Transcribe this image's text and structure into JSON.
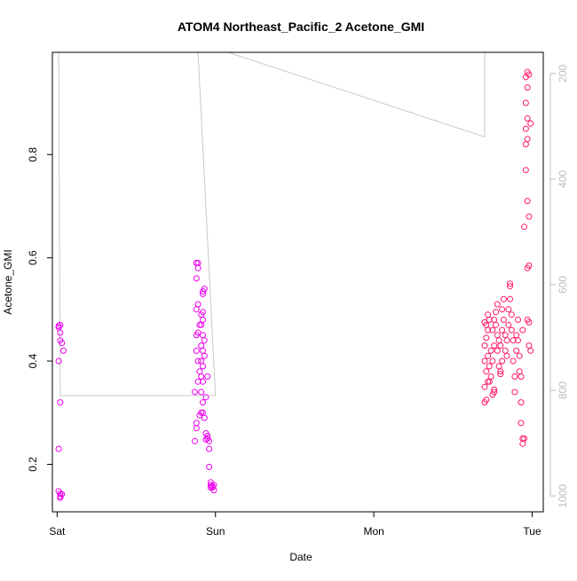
{
  "chart_data": {
    "type": "scatter",
    "title": "ATOM4 Northeast_Pacific_2 Acetone_GMI",
    "xlabel": "Date",
    "ylabel": "Acetone_GMI",
    "x_unit": "days since Sat 00:00",
    "xlim": [
      -0.03,
      3.07
    ],
    "ylim": [
      0.108,
      0.998
    ],
    "x_ticks": [
      {
        "value": 0,
        "label": "Sat"
      },
      {
        "value": 1,
        "label": "Sun"
      },
      {
        "value": 2,
        "label": "Mon"
      },
      {
        "value": 3,
        "label": "Tue"
      }
    ],
    "y_ticks": [
      0.2,
      0.4,
      0.6,
      0.8
    ],
    "right_axis": {
      "label": "",
      "range": [
        1030,
        160
      ],
      "ticks": [
        200,
        400,
        600,
        800,
        1000
      ],
      "color": "#bdbdbd"
    },
    "grid": false,
    "legend": "none",
    "colors": {
      "points_low": "#ee00ee",
      "points_high": "#ff1a66",
      "pressure_line": "#c8c8c8"
    },
    "pressure_line": [
      [
        0.01,
        160
      ],
      [
        0.02,
        810
      ],
      [
        1.0,
        810
      ],
      [
        0.89,
        160
      ],
      [
        0.91,
        160
      ],
      [
        0.93,
        160
      ],
      [
        0.95,
        160
      ],
      [
        0.97,
        160
      ],
      [
        1.08,
        160
      ],
      [
        2.7,
        320
      ],
      [
        2.7,
        160
      ],
      [
        2.72,
        160
      ],
      [
        2.74,
        160
      ],
      [
        2.76,
        160
      ],
      [
        2.78,
        160
      ],
      [
        2.8,
        160
      ],
      [
        2.82,
        160
      ],
      [
        2.84,
        160
      ],
      [
        2.86,
        160
      ],
      [
        2.88,
        160
      ],
      [
        2.9,
        160
      ],
      [
        2.92,
        160
      ],
      [
        2.94,
        160
      ],
      [
        2.96,
        160
      ],
      [
        2.98,
        160
      ],
      [
        3.0,
        160
      ]
    ],
    "series": [
      {
        "values": [
          [
            0.02,
            0.143
          ],
          [
            0.02,
            0.138
          ],
          [
            0.01,
            0.148
          ],
          [
            0.02,
            0.135
          ],
          [
            0.03,
            0.142
          ],
          [
            0.01,
            0.23
          ],
          [
            0.02,
            0.32
          ],
          [
            0.01,
            0.4
          ],
          [
            0.04,
            0.42
          ],
          [
            0.02,
            0.44
          ],
          [
            0.03,
            0.435
          ],
          [
            0.02,
            0.455
          ],
          [
            0.01,
            0.465
          ],
          [
            0.02,
            0.47
          ],
          [
            0.01,
            0.468
          ],
          [
            0.87,
            0.245
          ],
          [
            0.88,
            0.27
          ],
          [
            0.88,
            0.28
          ],
          [
            0.87,
            0.34
          ],
          [
            0.89,
            0.36
          ],
          [
            0.89,
            0.4
          ],
          [
            0.9,
            0.38
          ],
          [
            0.88,
            0.42
          ],
          [
            0.88,
            0.45
          ],
          [
            0.89,
            0.455
          ],
          [
            0.9,
            0.47
          ],
          [
            0.88,
            0.5
          ],
          [
            0.89,
            0.51
          ],
          [
            0.88,
            0.56
          ],
          [
            0.89,
            0.58
          ],
          [
            0.88,
            0.59
          ],
          [
            0.89,
            0.59
          ],
          [
            0.92,
            0.53
          ],
          [
            0.93,
            0.54
          ],
          [
            0.92,
            0.535
          ],
          [
            0.91,
            0.49
          ],
          [
            0.92,
            0.495
          ],
          [
            0.92,
            0.48
          ],
          [
            0.91,
            0.47
          ],
          [
            0.92,
            0.45
          ],
          [
            0.93,
            0.44
          ],
          [
            0.91,
            0.43
          ],
          [
            0.92,
            0.42
          ],
          [
            0.93,
            0.41
          ],
          [
            0.91,
            0.4
          ],
          [
            0.92,
            0.39
          ],
          [
            0.91,
            0.37
          ],
          [
            0.92,
            0.36
          ],
          [
            0.91,
            0.34
          ],
          [
            0.92,
            0.32
          ],
          [
            0.91,
            0.3
          ],
          [
            0.9,
            0.295
          ],
          [
            0.92,
            0.3
          ],
          [
            0.93,
            0.29
          ],
          [
            0.94,
            0.33
          ],
          [
            0.95,
            0.37
          ],
          [
            0.94,
            0.26
          ],
          [
            0.95,
            0.25
          ],
          [
            0.96,
            0.245
          ],
          [
            0.94,
            0.248
          ],
          [
            0.95,
            0.255
          ],
          [
            0.96,
            0.23
          ],
          [
            0.96,
            0.195
          ],
          [
            0.97,
            0.165
          ],
          [
            0.98,
            0.158
          ],
          [
            0.97,
            0.16
          ],
          [
            0.98,
            0.155
          ],
          [
            0.99,
            0.16
          ],
          [
            0.99,
            0.15
          ],
          [
            0.97,
            0.155
          ]
        ]
      },
      {
        "values": [
          [
            2.7,
            0.32
          ],
          [
            2.71,
            0.325
          ],
          [
            2.7,
            0.35
          ],
          [
            2.72,
            0.36
          ],
          [
            2.71,
            0.38
          ],
          [
            2.7,
            0.4
          ],
          [
            2.72,
            0.41
          ],
          [
            2.7,
            0.43
          ],
          [
            2.71,
            0.445
          ],
          [
            2.72,
            0.46
          ],
          [
            2.71,
            0.47
          ],
          [
            2.7,
            0.475
          ],
          [
            2.73,
            0.48
          ],
          [
            2.72,
            0.49
          ],
          [
            2.73,
            0.36
          ],
          [
            2.74,
            0.37
          ],
          [
            2.73,
            0.39
          ],
          [
            2.74,
            0.42
          ],
          [
            2.75,
            0.335
          ],
          [
            2.76,
            0.34
          ],
          [
            2.76,
            0.345
          ],
          [
            2.75,
            0.4
          ],
          [
            2.76,
            0.43
          ],
          [
            2.75,
            0.46
          ],
          [
            2.76,
            0.48
          ],
          [
            2.77,
            0.495
          ],
          [
            2.78,
            0.51
          ],
          [
            2.77,
            0.47
          ],
          [
            2.78,
            0.45
          ],
          [
            2.79,
            0.44
          ],
          [
            2.78,
            0.42
          ],
          [
            2.79,
            0.39
          ],
          [
            2.8,
            0.38
          ],
          [
            2.8,
            0.375
          ],
          [
            2.81,
            0.4
          ],
          [
            2.8,
            0.43
          ],
          [
            2.81,
            0.46
          ],
          [
            2.82,
            0.48
          ],
          [
            2.81,
            0.5
          ],
          [
            2.82,
            0.52
          ],
          [
            2.83,
            0.45
          ],
          [
            2.83,
            0.42
          ],
          [
            2.84,
            0.41
          ],
          [
            2.84,
            0.44
          ],
          [
            2.85,
            0.47
          ],
          [
            2.85,
            0.5
          ],
          [
            2.86,
            0.52
          ],
          [
            2.86,
            0.545
          ],
          [
            2.86,
            0.55
          ],
          [
            2.87,
            0.49
          ],
          [
            2.87,
            0.46
          ],
          [
            2.88,
            0.44
          ],
          [
            2.88,
            0.4
          ],
          [
            2.89,
            0.37
          ],
          [
            2.89,
            0.34
          ],
          [
            2.9,
            0.42
          ],
          [
            2.9,
            0.45
          ],
          [
            2.91,
            0.48
          ],
          [
            2.91,
            0.44
          ],
          [
            2.92,
            0.41
          ],
          [
            2.92,
            0.38
          ],
          [
            2.93,
            0.32
          ],
          [
            2.93,
            0.28
          ],
          [
            2.94,
            0.25
          ],
          [
            2.94,
            0.24
          ],
          [
            2.95,
            0.25
          ],
          [
            2.93,
            0.37
          ],
          [
            2.94,
            0.46
          ],
          [
            2.95,
            0.66
          ],
          [
            2.96,
            0.77
          ],
          [
            2.96,
            0.82
          ],
          [
            2.97,
            0.83
          ],
          [
            2.96,
            0.85
          ],
          [
            2.97,
            0.87
          ],
          [
            2.96,
            0.9
          ],
          [
            2.97,
            0.93
          ],
          [
            2.96,
            0.95
          ],
          [
            2.97,
            0.96
          ],
          [
            2.98,
            0.955
          ],
          [
            2.97,
            0.71
          ],
          [
            2.98,
            0.68
          ],
          [
            2.97,
            0.58
          ],
          [
            2.98,
            0.585
          ],
          [
            2.97,
            0.48
          ],
          [
            2.98,
            0.475
          ],
          [
            2.99,
            0.42
          ],
          [
            2.98,
            0.43
          ],
          [
            2.99,
            0.86
          ]
        ]
      }
    ]
  }
}
